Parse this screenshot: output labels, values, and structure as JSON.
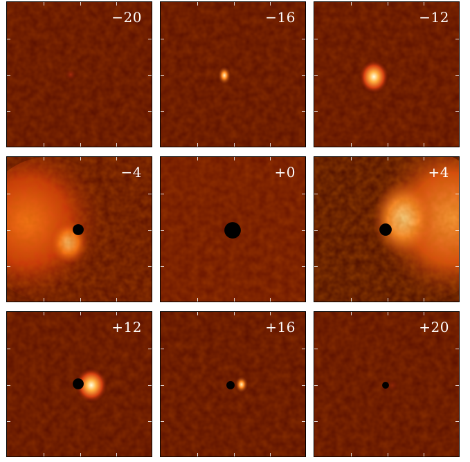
{
  "panels": [
    {
      "label": "−20",
      "feature": "faint-dot",
      "intensity": 0.15
    },
    {
      "label": "−16",
      "feature": "small-blob",
      "intensity": 0.8
    },
    {
      "label": "−12",
      "feature": "medium-blob",
      "intensity": 1.0
    },
    {
      "label": "−4",
      "feature": "dark-core-left-flare",
      "intensity": 0.7
    },
    {
      "label": "+0",
      "feature": "dark-core-only",
      "intensity": 0.0
    },
    {
      "label": "+4",
      "feature": "dark-core-right-flare",
      "intensity": 0.9
    },
    {
      "label": "+12",
      "feature": "dark-core-bright-blob",
      "intensity": 1.0
    },
    {
      "label": "+16",
      "feature": "dark-core-small-blob",
      "intensity": 0.8
    },
    {
      "label": "+20",
      "feature": "dark-core-faint",
      "intensity": 0.1
    }
  ],
  "colors": {
    "background": "#5a0f00",
    "bright": "#fff3c0",
    "hot": "#ff7a1a",
    "core": "#000000"
  }
}
